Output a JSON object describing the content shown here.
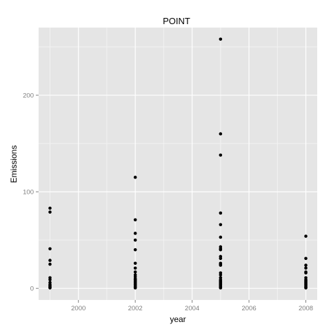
{
  "chart_data": {
    "type": "scatter",
    "title": "POINT",
    "xlabel": "year",
    "ylabel": "Emissions",
    "xlim": [
      1998.6,
      2008.4
    ],
    "ylim": [
      -12,
      270
    ],
    "x_ticks": [
      2000,
      2002,
      2004,
      2006,
      2008
    ],
    "x_tick_labels": [
      "2000",
      "2002",
      "2004",
      "2006",
      "2008"
    ],
    "y_ticks": [
      0,
      100,
      200
    ],
    "y_tick_labels": [
      "0",
      "100",
      "200"
    ],
    "grid": true,
    "legend": "none",
    "panel_color": "#e5e5e5",
    "grid_color": "#ffffff",
    "point_color": "#000000",
    "series": [
      {
        "points": [
          [
            1999,
            83
          ],
          [
            1999,
            79
          ],
          [
            1999,
            41
          ],
          [
            1999,
            29
          ],
          [
            1999,
            25
          ],
          [
            1999,
            11
          ],
          [
            1999,
            9
          ],
          [
            1999,
            6
          ],
          [
            1999,
            4
          ],
          [
            1999,
            3
          ],
          [
            1999,
            2
          ],
          [
            1999,
            1
          ],
          [
            1999,
            0.5
          ],
          [
            2002,
            115
          ],
          [
            2002,
            71
          ],
          [
            2002,
            57
          ],
          [
            2002,
            50
          ],
          [
            2002,
            40
          ],
          [
            2002,
            26
          ],
          [
            2002,
            21
          ],
          [
            2002,
            17
          ],
          [
            2002,
            14
          ],
          [
            2002,
            12
          ],
          [
            2002,
            10
          ],
          [
            2002,
            9
          ],
          [
            2002,
            8
          ],
          [
            2002,
            7
          ],
          [
            2002,
            6
          ],
          [
            2002,
            5
          ],
          [
            2002,
            4
          ],
          [
            2002,
            3
          ],
          [
            2002,
            2
          ],
          [
            2002,
            1
          ],
          [
            2002,
            0.5
          ],
          [
            2005,
            258
          ],
          [
            2005,
            160
          ],
          [
            2005,
            138
          ],
          [
            2005,
            78
          ],
          [
            2005,
            66
          ],
          [
            2005,
            53
          ],
          [
            2005,
            43
          ],
          [
            2005,
            41
          ],
          [
            2005,
            40
          ],
          [
            2005,
            33
          ],
          [
            2005,
            31
          ],
          [
            2005,
            26
          ],
          [
            2005,
            25
          ],
          [
            2005,
            24
          ],
          [
            2005,
            16
          ],
          [
            2005,
            14
          ],
          [
            2005,
            11
          ],
          [
            2005,
            9
          ],
          [
            2005,
            8
          ],
          [
            2005,
            7
          ],
          [
            2005,
            6
          ],
          [
            2005,
            5
          ],
          [
            2005,
            4
          ],
          [
            2005,
            3
          ],
          [
            2005,
            2
          ],
          [
            2005,
            1
          ],
          [
            2005,
            0.5
          ],
          [
            2008,
            54
          ],
          [
            2008,
            31
          ],
          [
            2008,
            24
          ],
          [
            2008,
            21
          ],
          [
            2008,
            17
          ],
          [
            2008,
            16
          ],
          [
            2008,
            11
          ],
          [
            2008,
            9
          ],
          [
            2008,
            8
          ],
          [
            2008,
            7
          ],
          [
            2008,
            6
          ],
          [
            2008,
            5
          ],
          [
            2008,
            4
          ],
          [
            2008,
            3
          ],
          [
            2008,
            2
          ],
          [
            2008,
            1
          ],
          [
            2008,
            0.5
          ]
        ]
      }
    ]
  }
}
